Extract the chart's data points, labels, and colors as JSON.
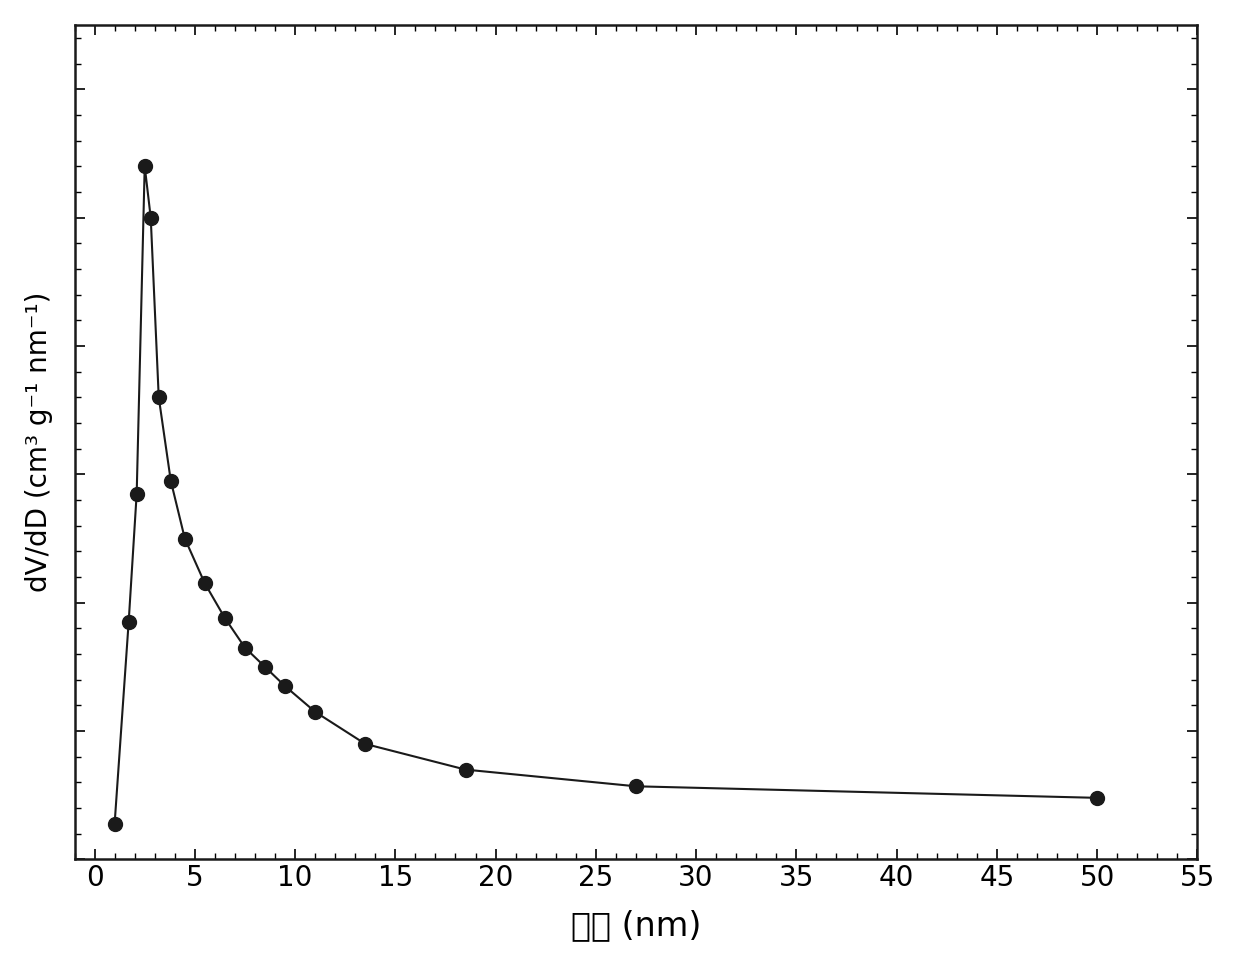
{
  "x": [
    1.0,
    1.7,
    2.1,
    2.5,
    2.8,
    3.2,
    3.8,
    4.5,
    5.5,
    6.5,
    7.5,
    8.5,
    9.5,
    11.0,
    13.5,
    18.5,
    27.0,
    50.0
  ],
  "y": [
    0.028,
    0.185,
    0.285,
    0.54,
    0.5,
    0.36,
    0.295,
    0.25,
    0.215,
    0.188,
    0.165,
    0.15,
    0.135,
    0.115,
    0.09,
    0.07,
    0.057,
    0.048
  ],
  "xlabel": "孔径 (nm)",
  "ylabel": "dV/dD (cm³ g⁻¹ nm⁻¹)",
  "xlim": [
    -1,
    55
  ],
  "ylim": [
    0,
    0.65
  ],
  "xticks": [
    0,
    5,
    10,
    15,
    20,
    25,
    30,
    35,
    40,
    45,
    50,
    55
  ],
  "line_color": "#1a1a1a",
  "marker_color": "#1a1a1a",
  "marker_size": 10,
  "line_width": 1.5,
  "background_color": "#ffffff",
  "xlabel_fontsize": 24,
  "ylabel_fontsize": 20,
  "tick_fontsize": 20
}
